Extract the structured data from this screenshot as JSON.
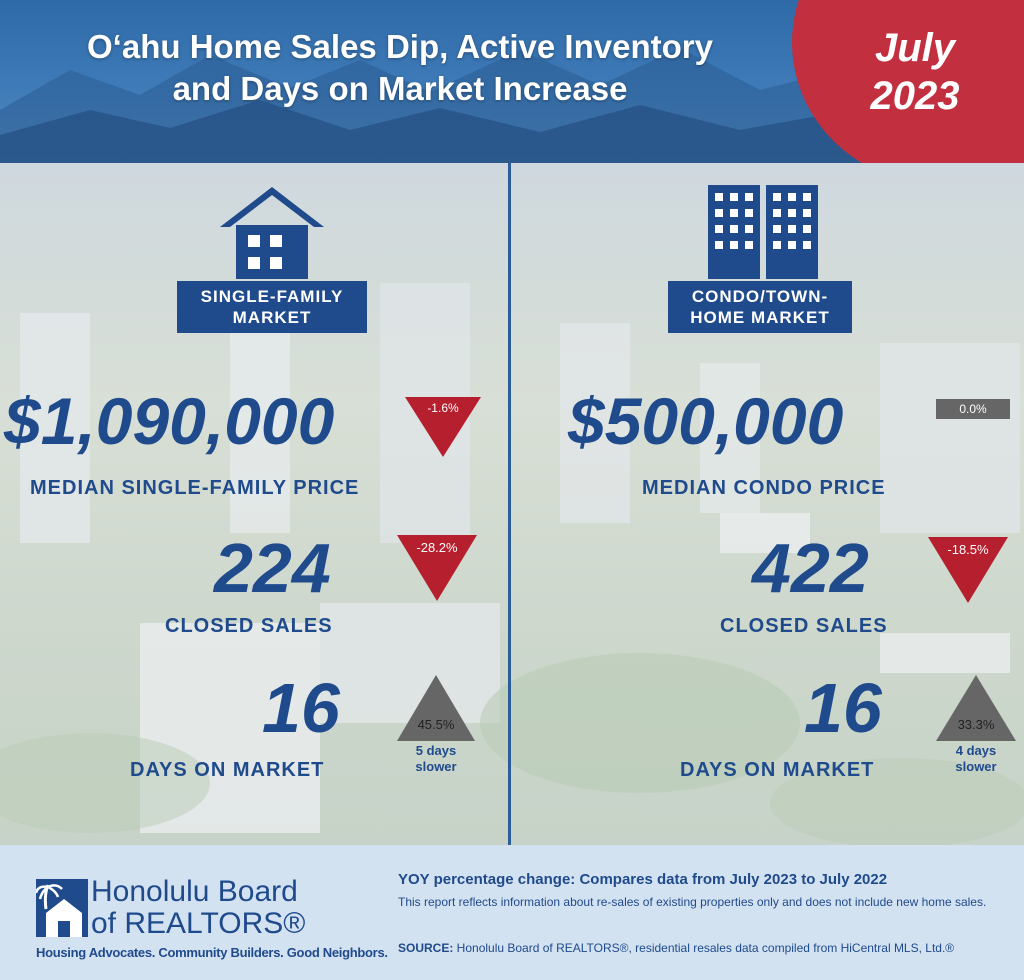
{
  "header": {
    "title_line1": "O‘ahu Home Sales Dip, Active Inventory",
    "title_line2": "and Days on Market Increase",
    "month": "July",
    "year": "2023"
  },
  "single_family": {
    "label_line1": "SINGLE-FAMILY",
    "label_line2": "MARKET",
    "median_price": "$1,090,000",
    "median_price_label": "MEDIAN SINGLE-FAMILY PRICE",
    "median_price_change": "-1.6%",
    "closed_sales": "224",
    "closed_sales_label": "CLOSED SALES",
    "closed_sales_change": "-28.2%",
    "days_on_market": "16",
    "days_on_market_label": "DAYS ON MARKET",
    "days_on_market_change": "45.5%",
    "days_note_line1": "5 days",
    "days_note_line2": "slower"
  },
  "condo": {
    "label_line1": "CONDO/TOWN-",
    "label_line2": "HOME MARKET",
    "median_price": "$500,000",
    "median_price_label": "MEDIAN CONDO PRICE",
    "median_price_change": "0.0%",
    "closed_sales": "422",
    "closed_sales_label": "CLOSED SALES",
    "closed_sales_change": "-18.5%",
    "days_on_market": "16",
    "days_on_market_label": "DAYS ON MARKET",
    "days_on_market_change": "33.3%",
    "days_note_line1": "4 days",
    "days_note_line2": "slower"
  },
  "footer": {
    "logo_line1": "Honolulu Board",
    "logo_line2": "of REALTORS®",
    "logo_tagline": "Housing Advocates. Community Builders. Good Neighbors.",
    "yoy_heading": "YOY percentage change: Compares data from July 2023 to July 2022",
    "disclaimer": "This report reflects information about re-sales of existing properties only and does not include new home sales.",
    "source_label": "SOURCE:",
    "source_text": " Honolulu Board of REALTORS®, residential resales data compiled from HiCentral MLS, Ltd.®"
  },
  "colors": {
    "brand_blue": "#1f4a8c",
    "decrease_red": "#b51f2e",
    "neutral_gray": "#666666",
    "date_circle": "#c23040"
  },
  "icons": {
    "single_family": "house-icon",
    "condo": "condo-towers-icon",
    "logo": "realtor-house-palm-icon"
  }
}
